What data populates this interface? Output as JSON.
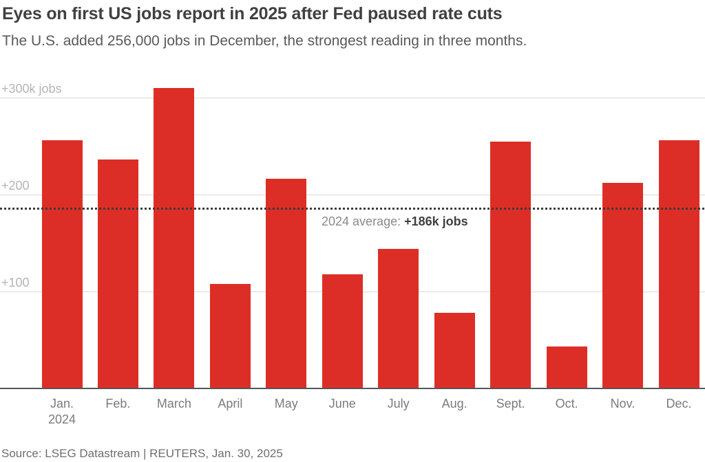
{
  "header": {
    "title": "Eyes on first US jobs report in 2025 after Fed paused rate cuts",
    "subtitle": "The U.S. added 256,000 jobs in December, the strongest reading in three months."
  },
  "annotation": {
    "label": "2024 average: ",
    "value": "+186k jobs"
  },
  "footer": {
    "source": "Source: LSEG Datastream | REUTERS, Jan. 30, 2025"
  },
  "colors": {
    "bar": "#dc2e26",
    "grid": "#d9d9d9",
    "tick_label": "#b5b5b5",
    "baseline": "#55565a",
    "average_line": "#3b3b3b",
    "annotation_label": "#8a8a8a",
    "annotation_value": "#3f3f3f",
    "title": "#404040",
    "subtitle": "#595959",
    "month_label": "#7b7b7b",
    "source": "#6e6e6e",
    "background": "#ffffff"
  },
  "chart_data": {
    "type": "bar",
    "title": "Eyes on first US jobs report in 2025 after Fed paused rate cuts",
    "subtitle": "The U.S. added 256,000 jobs in December, the strongest reading in three months.",
    "categories": [
      "Jan.",
      "Feb.",
      "March",
      "April",
      "May",
      "June",
      "July",
      "Aug.",
      "Sept.",
      "Oct.",
      "Nov.",
      "Dec."
    ],
    "x_sublabel": "2024",
    "values": [
      256,
      236,
      310,
      108,
      216,
      118,
      144,
      78,
      255,
      43,
      212,
      256
    ],
    "unit": "thousand jobs",
    "average": 186,
    "average_label": "2024 average: +186k jobs",
    "yticks": [
      {
        "value": 100,
        "label": "+100"
      },
      {
        "value": 200,
        "label": "+200"
      },
      {
        "value": 300,
        "label": "+300k jobs"
      }
    ],
    "ylim": [
      0,
      400
    ],
    "grid": true,
    "legend": false,
    "bar_color": "#dc2e26"
  }
}
